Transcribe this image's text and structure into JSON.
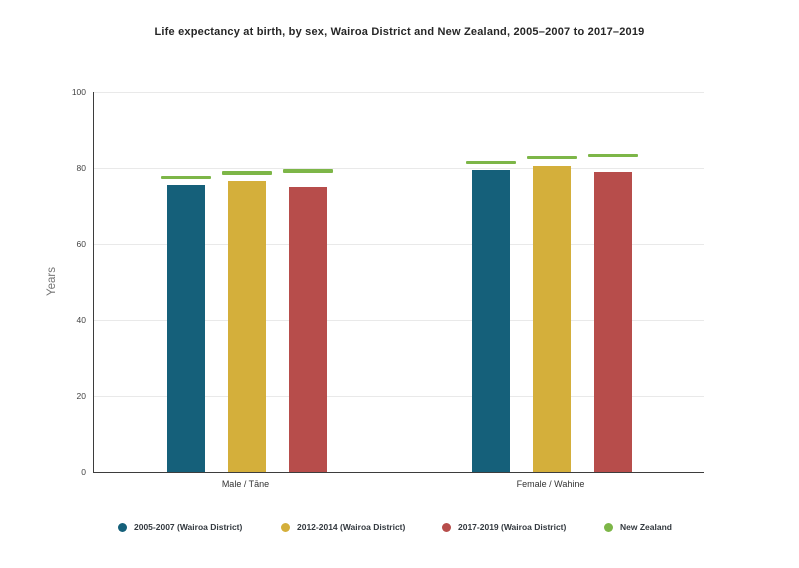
{
  "chart_data": {
    "type": "bar",
    "title": "Life expectancy at birth, by sex, Wairoa District and New Zealand, 2005–2007 to 2017–2019",
    "xlabel": "",
    "ylabel": "Years",
    "ylim": [
      0,
      100
    ],
    "yticks": [
      0,
      20,
      40,
      60,
      80,
      100
    ],
    "grid": true,
    "legend_position": "bottom",
    "categories": [
      "Male / Tāne",
      "Female / Wahine"
    ],
    "bar_series": [
      {
        "name": "2005-2007 (Wairoa District)",
        "color": "#15607a",
        "values": [
          75.5,
          79.4
        ]
      },
      {
        "name": "2012-2014 (Wairoa District)",
        "color": "#d4af3b",
        "values": [
          76.6,
          80.5
        ]
      },
      {
        "name": "2017-2019 (Wairoa District)",
        "color": "#b74d4b",
        "values": [
          75.1,
          79.0
        ]
      }
    ],
    "marker_series": {
      "name": "New Zealand",
      "color": "#7db648",
      "note": "horizontal dash above each period bar",
      "values_by_period": [
        [
          77.6,
          81.5
        ],
        [
          78.7,
          82.8
        ],
        [
          79.3,
          83.3
        ]
      ]
    }
  },
  "colors": {
    "axis": "#3d3d3d",
    "gridline": "#e9e9e9",
    "title_text": "#262626",
    "tick_text": "#424242",
    "ylabel_text": "#757575"
  }
}
